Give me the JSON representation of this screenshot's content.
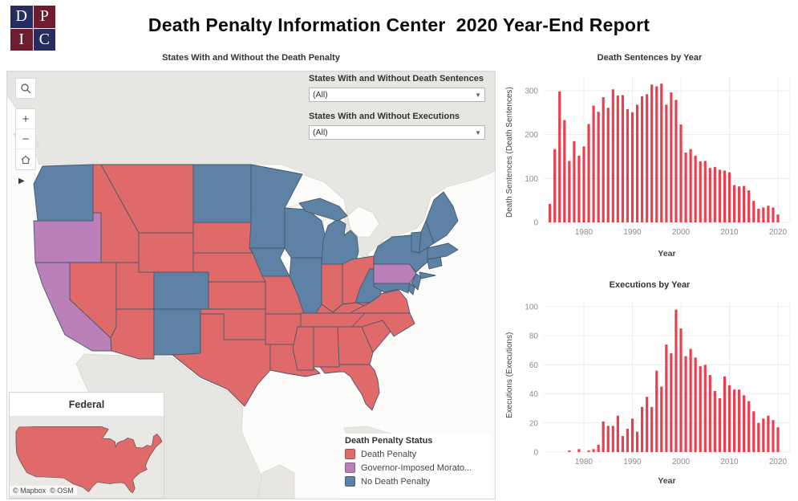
{
  "header": {
    "title": "Death Penalty Information Center  2020 Year-End Report",
    "logo_letters": [
      "D",
      "P",
      "I",
      "C"
    ],
    "logo_colors": {
      "navy": "#272d5f",
      "maroon": "#6f1d2c"
    }
  },
  "map_section": {
    "title": "States With and Without the Death Penalty",
    "filters": [
      {
        "label": "States With and Without Death Sentences",
        "value": "(All)"
      },
      {
        "label": "States With and Without Executions",
        "value": "(All)"
      }
    ],
    "controls": {
      "zoom_in": "+",
      "zoom_out": "−",
      "pan_arrow": "▶"
    },
    "inset": {
      "title": "Federal",
      "status": "death_penalty"
    },
    "attribution": "© Mapbox  © OSM",
    "legend": {
      "title": "Death Penalty Status",
      "items": [
        {
          "key": "death_penalty",
          "label": "Death Penalty",
          "color": "#e06a6a"
        },
        {
          "key": "moratorium",
          "label": "Governor-Imposed Morato...",
          "color": "#bb7fb9"
        },
        {
          "key": "none",
          "label": "No Death Penalty",
          "color": "#5e82a6"
        }
      ]
    },
    "states": {
      "WA": "none",
      "OR": "moratorium",
      "CA": "moratorium",
      "NV": "death_penalty",
      "ID": "death_penalty",
      "MT": "death_penalty",
      "WY": "death_penalty",
      "UT": "death_penalty",
      "CO": "none",
      "AZ": "death_penalty",
      "NM": "none",
      "ND": "none",
      "SD": "death_penalty",
      "NE": "death_penalty",
      "KS": "death_penalty",
      "OK": "death_penalty",
      "TX": "death_penalty",
      "MN": "none",
      "IA": "none",
      "MO": "death_penalty",
      "AR": "death_penalty",
      "LA": "death_penalty",
      "WI": "none",
      "IL": "none",
      "MI": "none",
      "IN": "death_penalty",
      "OH": "death_penalty",
      "KY": "death_penalty",
      "TN": "death_penalty",
      "MS": "death_penalty",
      "AL": "death_penalty",
      "GA": "death_penalty",
      "FL": "death_penalty",
      "SC": "death_penalty",
      "NC": "death_penalty",
      "VA": "death_penalty",
      "WV": "none",
      "PA": "moratorium",
      "MD": "none",
      "DE": "none",
      "NJ": "none",
      "NY": "none",
      "LI": "none",
      "CT": "none",
      "MA": "none",
      "VT": "none",
      "NH": "none",
      "ME": "none"
    }
  },
  "chart_data": [
    {
      "type": "bar",
      "title": "Death Sentences by Year",
      "xlabel": "Year",
      "ylabel": "Death Sentences (Death Sentences)",
      "bar_color": "#e8404e",
      "grid": "on",
      "x_start_year": 1973,
      "ylim": [
        0,
        320
      ],
      "yticks": [
        0,
        100,
        200,
        300
      ],
      "xticks": [
        1980,
        1990,
        2000,
        2010,
        2020
      ],
      "values": [
        42,
        167,
        298,
        233,
        140,
        185,
        152,
        173,
        224,
        266,
        252,
        285,
        261,
        303,
        289,
        290,
        258,
        251,
        268,
        287,
        292,
        314,
        310,
        316,
        268,
        296,
        279,
        223,
        159,
        167,
        152,
        139,
        140,
        124,
        126,
        120,
        118,
        114,
        85,
        82,
        83,
        73,
        49,
        31,
        34,
        38,
        34,
        18
      ]
    },
    {
      "type": "bar",
      "title": "Executions by Year",
      "xlabel": "Year",
      "ylabel": "Executions (Executions)",
      "bar_color": "#e8404e",
      "grid": "on",
      "x_start_year": 1973,
      "ylim": [
        0,
        100
      ],
      "yticks": [
        0,
        20,
        40,
        60,
        80,
        100
      ],
      "xticks": [
        1980,
        1990,
        2000,
        2010,
        2020
      ],
      "values": [
        0,
        0,
        0,
        0,
        1,
        0,
        2,
        0,
        1,
        2,
        5,
        21,
        18,
        18,
        25,
        11,
        16,
        23,
        14,
        31,
        38,
        31,
        56,
        45,
        74,
        68,
        98,
        85,
        66,
        71,
        65,
        59,
        60,
        53,
        42,
        37,
        52,
        46,
        43,
        43,
        39,
        35,
        28,
        20,
        23,
        25,
        22,
        17
      ]
    }
  ]
}
